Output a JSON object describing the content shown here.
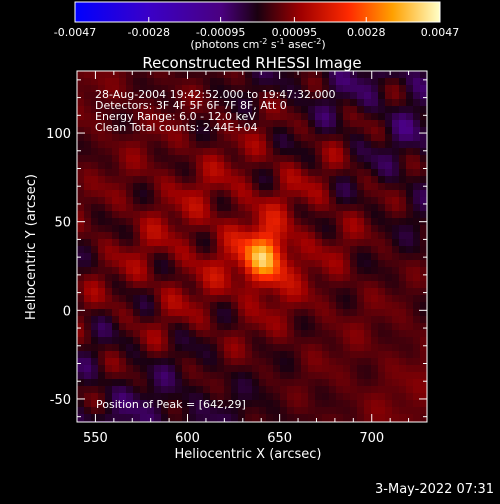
{
  "chart_data": {
    "type": "heatmap",
    "title": "Reconstructed RHESSI Image",
    "xlabel": "Heliocentric X (arcsec)",
    "ylabel": "Heliocentric Y (arcsec)",
    "xlim": [
      540,
      730
    ],
    "ylim": [
      -63,
      135
    ],
    "x_ticks": [
      550,
      600,
      650,
      700
    ],
    "y_ticks": [
      -50,
      0,
      50,
      100
    ],
    "colorbar": {
      "ticks": [
        "-0.0047",
        "-0.0028",
        "-0.00095",
        "0.00095",
        "0.0028",
        "0.0047"
      ],
      "range": [
        -0.0047,
        0.0047
      ],
      "unit_parts": [
        "(photons cm",
        "-2",
        " s",
        "-1",
        " asec",
        "-2",
        ")"
      ]
    },
    "annotations": [
      "28-Aug-2004 19:42:52.000 to 19:47:32.000",
      "Detectors: 3F 4F 5F 6F 7F 8F, Att 0",
      "Energy Range: 6.0 - 12.0 keV",
      "Clean     Total counts: 2.44E+04"
    ],
    "peak_label": "Position of Peak = [642,29]",
    "peak": {
      "x": 642,
      "y": 29
    }
  },
  "timestamp": "3-May-2022 07:31"
}
